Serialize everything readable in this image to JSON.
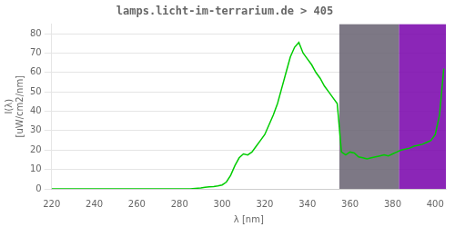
{
  "chart_data": {
    "type": "line",
    "title": "lamps.licht-im-terrarium.de > 405",
    "xlabel": "λ [nm]",
    "ylabel": "I(λ)\n[uW/cm2/nm]",
    "xlim": [
      220,
      405
    ],
    "ylim": [
      0,
      85
    ],
    "xticks": [
      220,
      240,
      260,
      280,
      300,
      320,
      340,
      360,
      380,
      400
    ],
    "yticks": [
      0,
      10,
      20,
      30,
      40,
      50,
      60,
      70,
      80
    ],
    "grid": "y",
    "color": "#00cc00",
    "spans": [
      {
        "x1": 355,
        "x2": 383,
        "color": "#666070"
      },
      {
        "x1": 383,
        "x2": 405,
        "color": "#7700aa"
      }
    ],
    "x": [
      220,
      230,
      240,
      250,
      260,
      270,
      280,
      285,
      290,
      292,
      294,
      296,
      298,
      300,
      302,
      304,
      306,
      308,
      310,
      312,
      314,
      316,
      318,
      320,
      322,
      324,
      326,
      328,
      330,
      332,
      334,
      336,
      338,
      340,
      342,
      344,
      346,
      348,
      350,
      352,
      354,
      356,
      358,
      360,
      362,
      364,
      366,
      368,
      370,
      372,
      374,
      376,
      378,
      380,
      382,
      384,
      386,
      388,
      390,
      392,
      394,
      396,
      398,
      400,
      402,
      404
    ],
    "values": [
      0.0,
      0.0,
      0.0,
      0.0,
      0.0,
      0.0,
      0.0,
      0.0,
      0.5,
      0.8,
      1.0,
      1.2,
      1.5,
      2.0,
      3.5,
      7.0,
      12.0,
      16.0,
      18.0,
      17.5,
      19.0,
      22.0,
      25.0,
      28.0,
      33.0,
      38.0,
      44.0,
      52.0,
      60.0,
      68.0,
      73.0,
      75.5,
      70.0,
      67.0,
      64.0,
      60.0,
      57.0,
      53.0,
      50.0,
      47.0,
      44.0,
      19.0,
      17.5,
      19.0,
      18.5,
      16.5,
      16.0,
      15.5,
      16.0,
      16.5,
      17.0,
      17.5,
      17.0,
      18.0,
      19.0,
      20.0,
      20.5,
      21.0,
      22.0,
      22.5,
      23.0,
      24.0,
      25.0,
      28.0,
      38.0,
      62.0
    ]
  }
}
